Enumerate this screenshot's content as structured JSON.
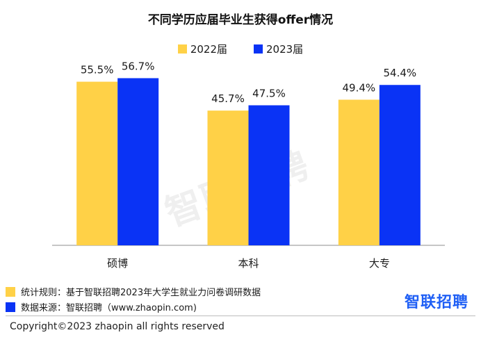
{
  "title": "不同学历应届毕业生获得offer情况",
  "legend": [
    {
      "label": "2022届",
      "color": "#FFD147"
    },
    {
      "label": "2023届",
      "color": "#0A33F5"
    }
  ],
  "chart_data": {
    "type": "bar",
    "categories": [
      "硕博",
      "本科",
      "大专"
    ],
    "series": [
      {
        "name": "2022届",
        "values": [
          55.5,
          45.7,
          49.4
        ],
        "labels": [
          "55.5%",
          "45.7%",
          "49.4%"
        ],
        "color": "#FFD147"
      },
      {
        "name": "2023届",
        "values": [
          56.7,
          47.5,
          54.4
        ],
        "labels": [
          "56.7%",
          "47.5%",
          "54.4%"
        ],
        "color": "#0A33F5"
      }
    ],
    "title": "不同学历应届毕业生获得offer情况",
    "ylim": [
      0,
      62
    ],
    "grid": false,
    "legend_position": "top-center"
  },
  "notes": {
    "stat_rule": "统计规则：基于智联招聘2023年大学生就业力问卷调研数据",
    "source": "数据来源：智联招聘（www.zhaopin.com)"
  },
  "brand": "智联招聘",
  "watermark": "智联招聘",
  "copyright": "Copyright©2023 zhaopin all rights reserved"
}
